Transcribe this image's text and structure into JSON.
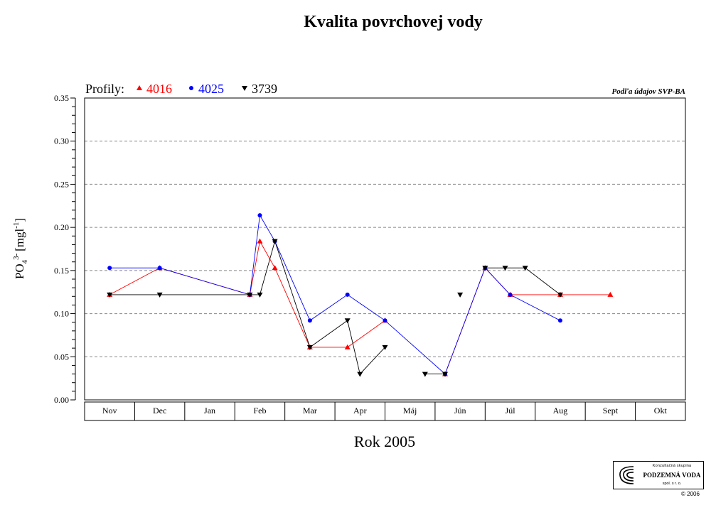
{
  "chart_data": {
    "type": "line",
    "title": "Kvalita povrchovej vody",
    "xlabel": "Rok 2005",
    "ylabel_main": "PO",
    "ylabel_sub": "4",
    "ylabel_sup": "3-",
    "ylabel_unit_open": "[mgl",
    "ylabel_unit_sup": "-1",
    "ylabel_unit_close": "]",
    "source_note": "Podľa údajov SVP-BA",
    "legend_prefix": "Profily:",
    "legend_position": "top-left",
    "grid": "horizontal dashed",
    "ylim": [
      0,
      0.35
    ],
    "y_ticks": [
      "0.00",
      "0.05",
      "0.10",
      "0.15",
      "0.20",
      "0.25",
      "0.30",
      "0.35"
    ],
    "categories": [
      "Nov",
      "Dec",
      "Jan",
      "Feb",
      "Mar",
      "Apr",
      "Máj",
      "Jún",
      "Júl",
      "Aug",
      "Sept",
      "Okt"
    ],
    "series": [
      {
        "name": "4016",
        "color": "#ff0000",
        "marker": "triangle-up",
        "segments": [
          [
            [
              0.0,
              0.122
            ],
            [
              1.0,
              0.153
            ],
            [
              2.8,
              0.122
            ],
            [
              3.0,
              0.184
            ],
            [
              3.3,
              0.153
            ],
            [
              4.0,
              0.061
            ],
            [
              4.75,
              0.061
            ],
            [
              5.5,
              0.092
            ]
          ],
          [
            [
              6.7,
              0.03
            ],
            [
              7.5,
              0.153
            ],
            [
              8.0,
              0.122
            ],
            [
              9.0,
              0.122
            ],
            [
              10.0,
              0.122
            ]
          ]
        ]
      },
      {
        "name": "4025",
        "color": "#0000ff",
        "marker": "circle",
        "segments": [
          [
            [
              0.0,
              0.153
            ],
            [
              1.0,
              0.153
            ],
            [
              2.8,
              0.122
            ],
            [
              3.0,
              0.214
            ],
            [
              3.3,
              0.184
            ],
            [
              4.0,
              0.092
            ],
            [
              4.75,
              0.122
            ],
            [
              5.5,
              0.092
            ],
            [
              6.7,
              0.03
            ],
            [
              7.5,
              0.153
            ],
            [
              8.0,
              0.122
            ],
            [
              9.0,
              0.092
            ]
          ]
        ]
      },
      {
        "name": "3739",
        "color": "#000000",
        "marker": "triangle-down",
        "segments": [
          [
            [
              0.0,
              0.122
            ],
            [
              1.0,
              0.122
            ],
            [
              2.8,
              0.122
            ],
            [
              3.0,
              0.122
            ],
            [
              3.3,
              0.184
            ],
            [
              4.0,
              0.061
            ],
            [
              4.75,
              0.092
            ],
            [
              5.0,
              0.03
            ],
            [
              5.5,
              0.061
            ]
          ],
          [
            [
              6.3,
              0.03
            ],
            [
              6.7,
              0.03
            ]
          ],
          [
            [
              7.0,
              0.122
            ]
          ],
          [
            [
              7.5,
              0.153
            ],
            [
              7.9,
              0.153
            ],
            [
              8.3,
              0.153
            ],
            [
              9.0,
              0.122
            ]
          ]
        ]
      }
    ]
  },
  "logo": {
    "top_text": "Konzultačná skupina",
    "main_text": "PODZEMNÁ VODA",
    "sub_text": "spol. s r. o."
  },
  "copyright": "© 2006"
}
